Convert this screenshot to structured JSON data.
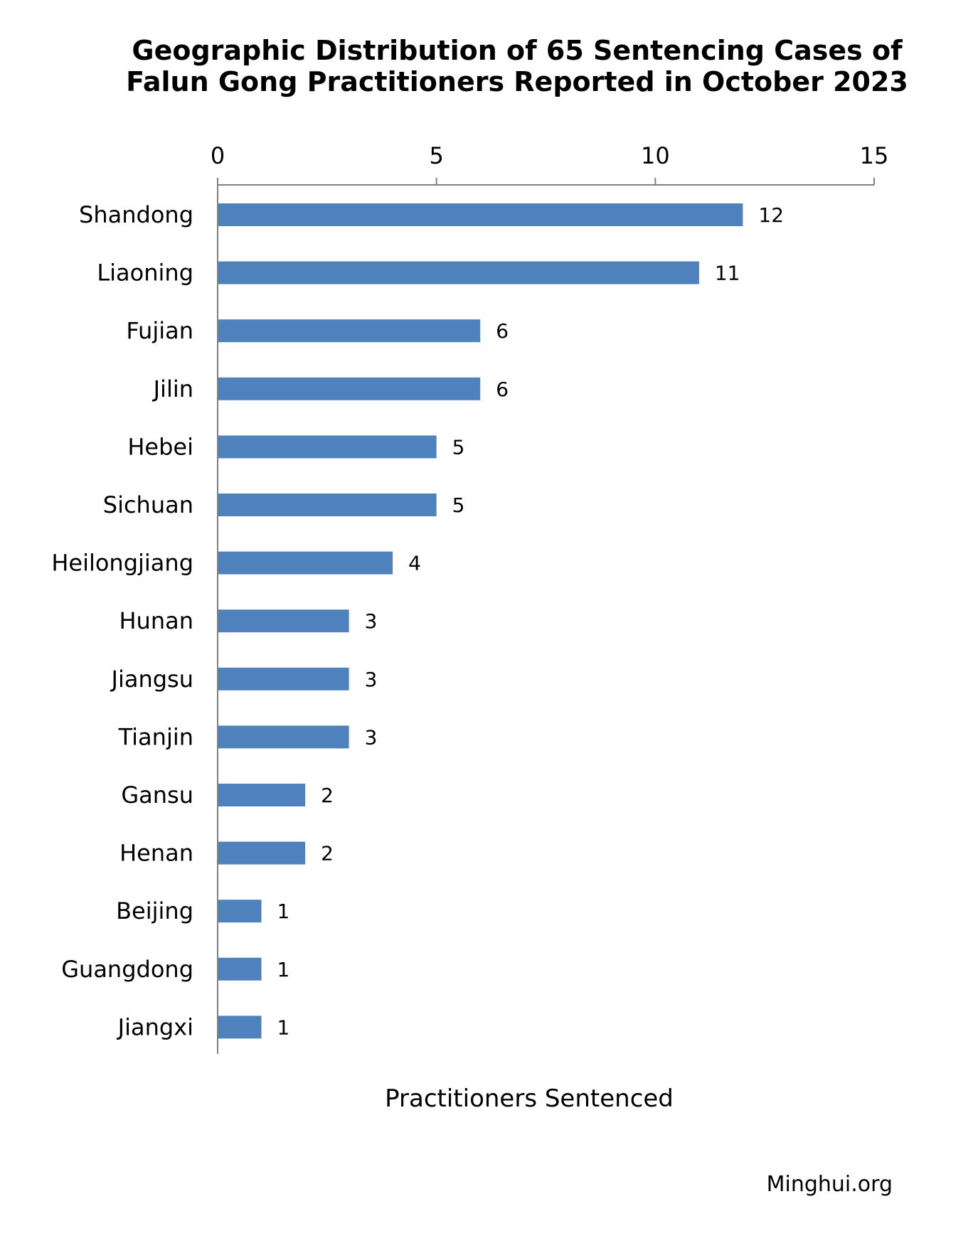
{
  "chart_data": {
    "type": "bar",
    "orientation": "horizontal",
    "title": [
      "Geographic Distribution of 65 Sentencing Cases of",
      "Falun Gong Practitioners Reported in October 2023"
    ],
    "xlabel": "Practitioners Sentenced",
    "ylabel": "",
    "xlim": [
      0,
      15
    ],
    "x_ticks": [
      0,
      5,
      10,
      15
    ],
    "x_axis_position": "top",
    "grid": false,
    "bar_color": "#4F81BD",
    "categories": [
      "Shandong",
      "Liaoning",
      "Fujian",
      "Jilin",
      "Hebei",
      "Sichuan",
      "Heilongjiang",
      "Hunan",
      "Jiangsu",
      "Tianjin",
      "Gansu",
      "Henan",
      "Beijing",
      "Guangdong",
      "Jiangxi"
    ],
    "values": [
      12,
      11,
      6,
      6,
      5,
      5,
      4,
      3,
      3,
      3,
      2,
      2,
      1,
      1,
      1
    ],
    "data_labels": [
      "12",
      "11",
      "6",
      "6",
      "5",
      "5",
      "4",
      "3",
      "3",
      "3",
      "2",
      "2",
      "1",
      "1",
      "1"
    ]
  },
  "source": "Minghui.org"
}
